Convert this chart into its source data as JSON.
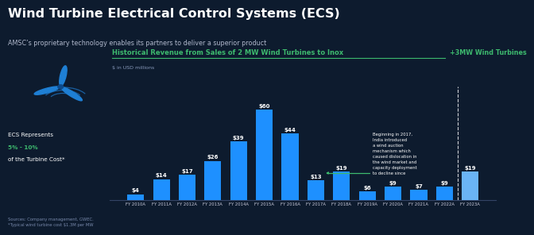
{
  "title": "Wind Turbine Electrical Control Systems (ECS)",
  "subtitle": "AMSC’s proprietary technology enables its partners to deliver a superior product",
  "background_color": "#0d1b2e",
  "bar_color_main": "#1e90ff",
  "bar_color_light": "#6ab4f5",
  "text_color": "#ffffff",
  "green_color": "#3dba6e",
  "section_title": "Historical Revenue from Sales of 2 MW Wind Turbines to Inox",
  "section_title2": "+3MW Wind Turbines",
  "y_label": "$ in USD millions",
  "categories": [
    "FY 2010A",
    "FY 2011A",
    "FY 2012A",
    "FY 2013A",
    "FY 2014A",
    "FY 2015A",
    "FY 2016A",
    "FY 2017A",
    "FY 2018A",
    "FY 2019A",
    "FY 2020A",
    "FY 2021A",
    "FY 2022A",
    "FY 2023A"
  ],
  "values": [
    4,
    14,
    17,
    26,
    39,
    60,
    44,
    13,
    19,
    6,
    9,
    7,
    9,
    19
  ],
  "annotation_text": "Beginning in 2017,\nIndia introduced\na wind auction\nmechanism which\ncaused dislocation in\nthe wind market and\ncapacity deployment\nto decline since",
  "sources_text": "Sources: Company management, GWEC.\n*Typical wind turbine cost $1.3M per MW",
  "ecs_line1": "ECS Represents",
  "ecs_line2": "5% - 10%",
  "ecs_line3": "of the Turbine Cost*"
}
